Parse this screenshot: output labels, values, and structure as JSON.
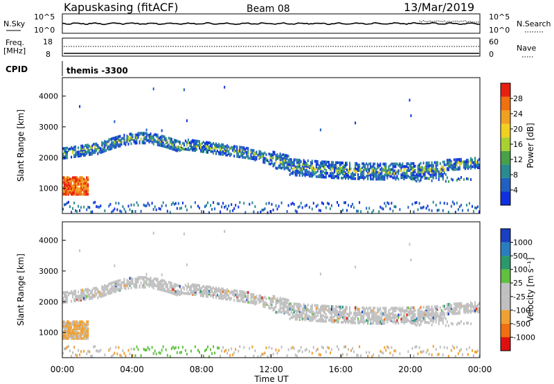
{
  "header": {
    "site": "Kapuskasing (fitACF)",
    "beam": "Beam 08",
    "date": "13/Mar/2019"
  },
  "top_panel": {
    "left_label": "N.Sky",
    "left_ticks": [
      "10^5",
      "10^0"
    ],
    "right_label": "N.Search",
    "right_ticks": [
      "10^5",
      "10^0"
    ]
  },
  "freq_panel": {
    "left_label_line1": "Freq.",
    "left_label_line2": "[MHz]",
    "left_ticks": [
      "18",
      "8"
    ],
    "right_label": "Nave",
    "right_ticks": [
      "60",
      "0"
    ]
  },
  "cpid_panel": {
    "label": "CPID",
    "text": "themis  -3300"
  },
  "x_axis": {
    "label": "Time UT",
    "ticks": [
      "00:00",
      "04:00",
      "08:00",
      "12:00",
      "16:00",
      "20:00",
      "00:00"
    ]
  },
  "chart_data": [
    {
      "type": "heatmap",
      "name": "power",
      "ylabel": "Slant Range [km]",
      "yticks": [
        "1000",
        "2000",
        "3000",
        "4000"
      ],
      "ylim": [
        180,
        4600
      ],
      "xlim_hours": [
        0,
        24
      ],
      "colorbar_label": "Power [dB]",
      "colorbar_ticks": [
        "4",
        "8",
        "12",
        "16",
        "20",
        "24",
        "28"
      ],
      "colorbar_colors": [
        "#1030e0",
        "#2060c0",
        "#2a8a90",
        "#48a048",
        "#a8d030",
        "#f0d020",
        "#f0a020",
        "#f07010",
        "#e82010"
      ],
      "background_hint": "scatter echoes along dayside band ~2000-2600 km, nightside band ~1500-2000 km"
    },
    {
      "type": "heatmap",
      "name": "velocity",
      "ylabel": "Slant Range [km]",
      "yticks": [
        "1000",
        "2000",
        "3000",
        "4000"
      ],
      "ylim": [
        180,
        4600
      ],
      "xlim_hours": [
        0,
        24
      ],
      "colorbar_label": "Velocity [m s⁻¹]",
      "colorbar_ticks": [
        "1000",
        "500",
        "100",
        "25",
        "-25",
        "-100",
        "-500",
        "-1000"
      ],
      "colorbar_colors": [
        "#1a3fc0",
        "#2a7ec0",
        "#2a9a6a",
        "#60c040",
        "#c0c0c0",
        "#c0c0c0",
        "#f0a030",
        "#f07010",
        "#e01010"
      ]
    }
  ]
}
